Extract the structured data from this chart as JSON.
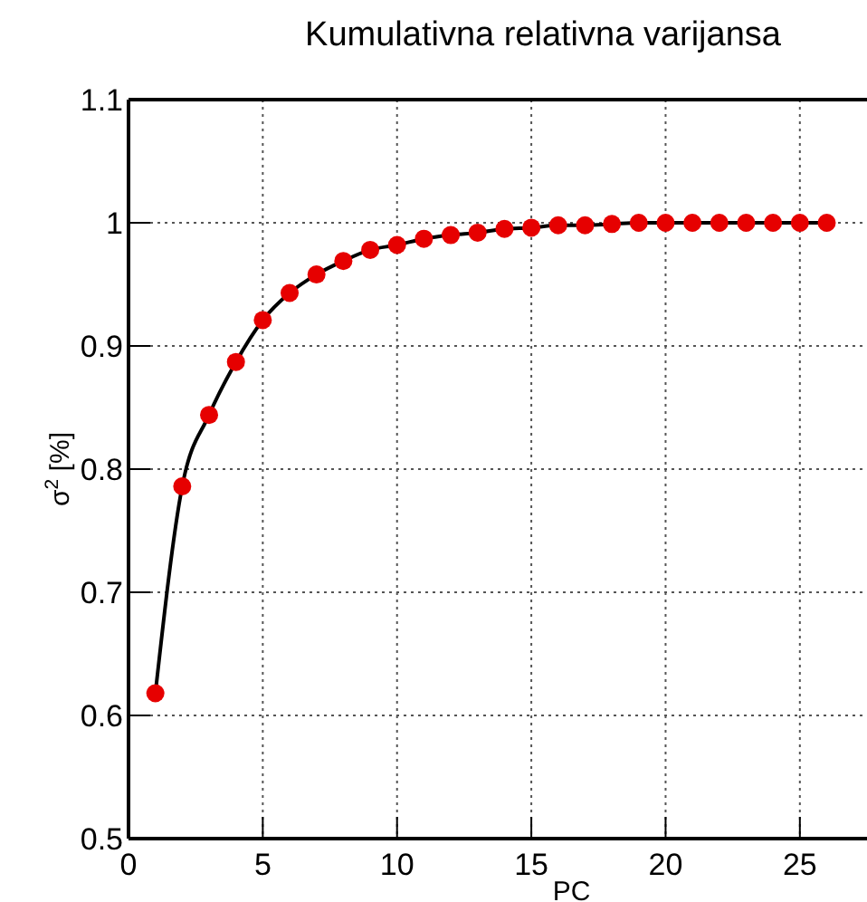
{
  "chart_data": {
    "type": "line",
    "title": "Kumulativna relativna varijansa",
    "xlabel": "PC",
    "ylabel": "σ$^{2}$ [%]",
    "x": [
      1,
      2,
      3,
      4,
      5,
      6,
      7,
      8,
      9,
      10,
      11,
      12,
      13,
      14,
      15,
      16,
      17,
      18,
      19,
      20,
      21,
      22,
      23,
      24,
      25,
      26
    ],
    "series": [
      {
        "color": "#e60000",
        "values": [
          0.618,
          0.786,
          0.844,
          0.887,
          0.921,
          0.943,
          0.958,
          0.969,
          0.978,
          0.982,
          0.987,
          0.99,
          0.992,
          0.995,
          0.996,
          0.998,
          0.998,
          0.999,
          1.0,
          1.0,
          1.0,
          1.0,
          1.0,
          1.0,
          1.0,
          1.0
        ]
      }
    ],
    "xlim": [
      0,
      27.5
    ],
    "xticks": [
      0,
      5,
      10,
      15,
      20,
      25
    ],
    "ylim": [
      0.5,
      1.1
    ],
    "yticks": [
      0.5,
      0.6,
      0.7,
      0.8,
      0.9,
      {
        "value": 1,
        "label": "1"
      },
      1.1
    ],
    "grid": true,
    "marker": "circle",
    "line_style": "solid"
  }
}
